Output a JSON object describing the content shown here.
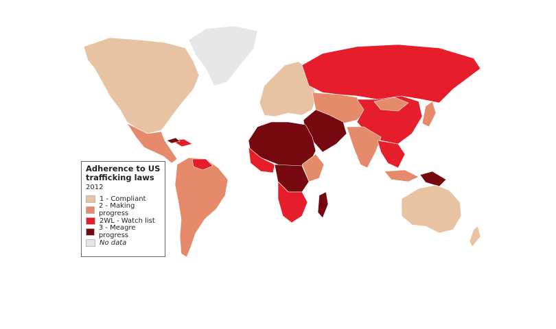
{
  "legend": {
    "title": "Adherence to US trafficking laws",
    "subtitle": "2012",
    "items": [
      {
        "label": "1 - Compliant",
        "color": "#e8c3a3"
      },
      {
        "label": "2 - Making progress",
        "color": "#e58a6a"
      },
      {
        "label": "2WL - Watch list",
        "color": "#e61e2b"
      },
      {
        "label": "3 - Meagre progress",
        "color": "#76090f"
      },
      {
        "label": "No data",
        "color": "#e6e6e6"
      }
    ]
  }
}
